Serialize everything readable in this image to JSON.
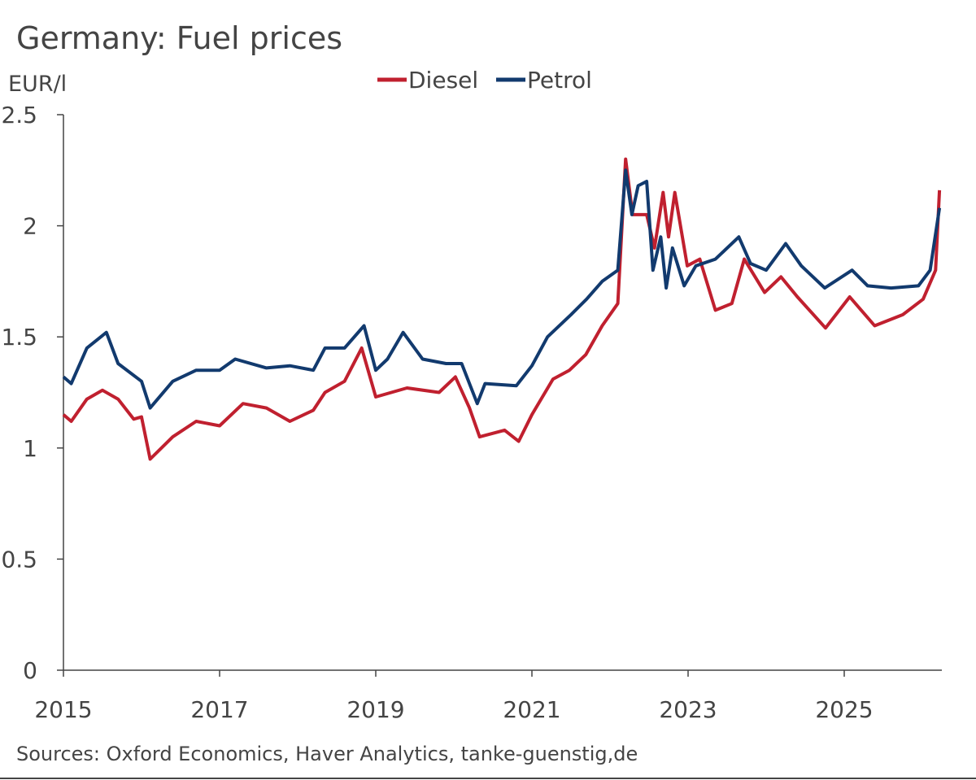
{
  "chart_data": {
    "type": "line",
    "title": "Germany: Fuel prices",
    "y_label": "EUR/l",
    "source": "Sources: Oxford Economics, Haver Analytics, tanke-guenstig,de",
    "xlim": [
      2015,
      2026.25
    ],
    "xticks": [
      2015,
      2017,
      2019,
      2021,
      2023,
      2025
    ],
    "ylim": [
      0,
      2.5
    ],
    "yticks": [
      0,
      0.5,
      1,
      1.5,
      2,
      2.5
    ],
    "grid": false,
    "legend": "top",
    "series": [
      {
        "name": "Diesel",
        "color": "#c0202f",
        "x": [
          2015.0,
          2015.1,
          2015.3,
          2015.5,
          2015.7,
          2015.9,
          2016.0,
          2016.11,
          2016.4,
          2016.7,
          2017.0,
          2017.3,
          2017.6,
          2017.9,
          2018.2,
          2018.35,
          2018.6,
          2018.82,
          2019.0,
          2019.4,
          2019.81,
          2020.02,
          2020.2,
          2020.33,
          2020.65,
          2020.83,
          2021.0,
          2021.27,
          2021.48,
          2021.69,
          2021.9,
          2022.1,
          2022.2,
          2022.29,
          2022.47,
          2022.57,
          2022.68,
          2022.75,
          2022.83,
          2022.99,
          2023.15,
          2023.35,
          2023.56,
          2023.72,
          2023.98,
          2024.19,
          2024.4,
          2024.76,
          2025.07,
          2025.39,
          2025.75,
          2026.01,
          2026.17,
          2026.22
        ],
        "values": [
          1.15,
          1.12,
          1.22,
          1.26,
          1.22,
          1.13,
          1.14,
          0.95,
          1.05,
          1.12,
          1.1,
          1.2,
          1.18,
          1.12,
          1.17,
          1.25,
          1.3,
          1.45,
          1.23,
          1.27,
          1.25,
          1.32,
          1.18,
          1.05,
          1.08,
          1.03,
          1.15,
          1.31,
          1.35,
          1.42,
          1.55,
          1.65,
          2.3,
          2.05,
          2.05,
          1.9,
          2.15,
          1.95,
          2.15,
          1.82,
          1.85,
          1.62,
          1.65,
          1.85,
          1.7,
          1.77,
          1.68,
          1.54,
          1.68,
          1.55,
          1.6,
          1.67,
          1.8,
          2.16
        ]
      },
      {
        "name": "Petrol",
        "color": "#123a6e",
        "x": [
          2015.0,
          2015.1,
          2015.3,
          2015.55,
          2015.7,
          2016.0,
          2016.11,
          2016.4,
          2016.7,
          2017.0,
          2017.2,
          2017.6,
          2017.9,
          2018.2,
          2018.35,
          2018.6,
          2018.85,
          2019.0,
          2019.15,
          2019.35,
          2019.6,
          2019.9,
          2020.1,
          2020.3,
          2020.4,
          2020.8,
          2021.0,
          2021.2,
          2021.5,
          2021.7,
          2021.9,
          2022.1,
          2022.2,
          2022.28,
          2022.36,
          2022.47,
          2022.55,
          2022.65,
          2022.72,
          2022.8,
          2022.95,
          2023.1,
          2023.35,
          2023.65,
          2023.8,
          2024.0,
          2024.25,
          2024.45,
          2024.75,
          2025.1,
          2025.3,
          2025.6,
          2025.95,
          2026.1,
          2026.22
        ],
        "values": [
          1.32,
          1.29,
          1.45,
          1.52,
          1.38,
          1.3,
          1.18,
          1.3,
          1.35,
          1.35,
          1.4,
          1.36,
          1.37,
          1.35,
          1.45,
          1.45,
          1.55,
          1.35,
          1.4,
          1.52,
          1.4,
          1.38,
          1.38,
          1.2,
          1.29,
          1.28,
          1.37,
          1.5,
          1.6,
          1.67,
          1.75,
          1.8,
          2.25,
          2.05,
          2.18,
          2.2,
          1.8,
          1.95,
          1.72,
          1.9,
          1.73,
          1.82,
          1.85,
          1.95,
          1.83,
          1.8,
          1.92,
          1.82,
          1.72,
          1.8,
          1.73,
          1.72,
          1.73,
          1.8,
          2.08
        ]
      }
    ]
  }
}
